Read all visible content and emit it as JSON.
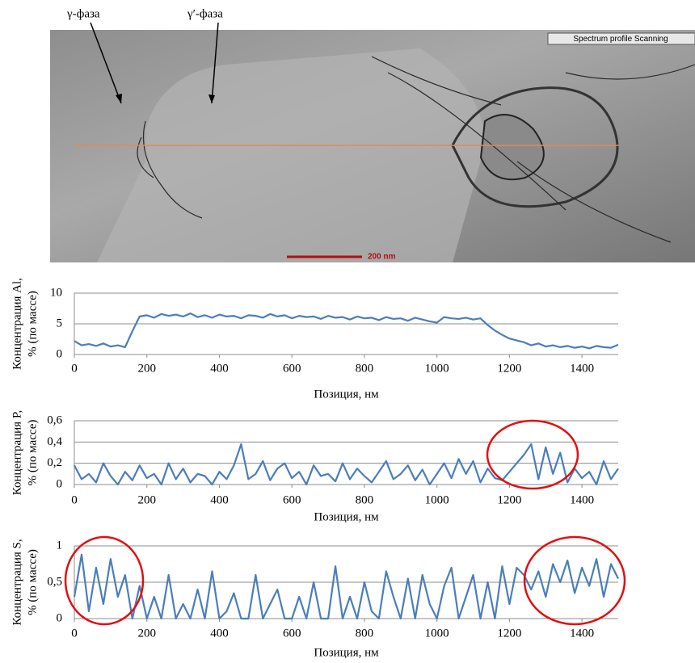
{
  "image": {
    "labels": [
      "γ-фаза",
      "γ′-фаза"
    ],
    "panel_label": "Spectrum profile Scanning",
    "scale_bar": "200 nm"
  },
  "chart_data": [
    {
      "type": "line",
      "ylabel": [
        "Концентрация Al,",
        "% (по массе)"
      ],
      "xlabel": "Позиция, нм",
      "color": "#4a7ebb",
      "grid": true,
      "xlim": [
        0,
        1500
      ],
      "xticks": [
        0,
        200,
        400,
        600,
        800,
        1000,
        1200,
        1400
      ],
      "ylim": [
        0,
        10
      ],
      "yticks": [
        0,
        5,
        10
      ],
      "x": [
        0,
        20,
        40,
        60,
        80,
        100,
        120,
        140,
        160,
        180,
        200,
        220,
        240,
        260,
        280,
        300,
        320,
        340,
        360,
        380,
        400,
        420,
        440,
        460,
        480,
        500,
        520,
        540,
        560,
        580,
        600,
        620,
        640,
        660,
        680,
        700,
        720,
        740,
        760,
        780,
        800,
        820,
        840,
        860,
        880,
        900,
        920,
        940,
        960,
        980,
        1000,
        1020,
        1040,
        1060,
        1080,
        1100,
        1120,
        1140,
        1160,
        1180,
        1200,
        1220,
        1240,
        1260,
        1280,
        1300,
        1320,
        1340,
        1360,
        1380,
        1400,
        1420,
        1440,
        1460,
        1480,
        1500
      ],
      "values": [
        2.2,
        1.5,
        1.7,
        1.4,
        1.8,
        1.3,
        1.5,
        1.2,
        3.8,
        6.2,
        6.4,
        6.0,
        6.6,
        6.3,
        6.5,
        6.2,
        6.7,
        6.1,
        6.4,
        6.0,
        6.5,
        6.2,
        6.3,
        5.9,
        6.4,
        6.3,
        6.0,
        6.6,
        6.2,
        6.4,
        5.9,
        6.3,
        6.1,
        6.2,
        5.8,
        6.3,
        6.0,
        6.1,
        5.7,
        6.2,
        5.9,
        6.0,
        5.6,
        6.1,
        5.8,
        5.9,
        5.5,
        6.0,
        5.7,
        5.4,
        5.2,
        6.1,
        5.9,
        5.8,
        6.0,
        5.7,
        5.9,
        4.8,
        3.9,
        3.2,
        2.6,
        2.3,
        2.0,
        1.5,
        1.8,
        1.3,
        1.5,
        1.2,
        1.4,
        1.1,
        1.3,
        1.0,
        1.4,
        1.2,
        1.1,
        1.6
      ]
    },
    {
      "type": "line",
      "ylabel": [
        "Концентрация P,",
        "% (по массе)"
      ],
      "xlabel": "Позиция, нм",
      "color": "#4a7ebb",
      "grid": true,
      "xlim": [
        0,
        1500
      ],
      "xticks": [
        0,
        200,
        400,
        600,
        800,
        1000,
        1200,
        1400
      ],
      "ylim": [
        0,
        0.6
      ],
      "yticks": [
        0,
        {
          "value": 0.2,
          "label": "0,2"
        },
        {
          "value": 0.4,
          "label": "0,4"
        },
        {
          "value": 0.6,
          "label": "0,6"
        }
      ],
      "x": [
        0,
        20,
        40,
        60,
        80,
        100,
        120,
        140,
        160,
        180,
        200,
        220,
        240,
        260,
        280,
        300,
        320,
        340,
        360,
        380,
        400,
        420,
        440,
        460,
        480,
        500,
        520,
        540,
        560,
        580,
        600,
        620,
        640,
        660,
        680,
        700,
        720,
        740,
        760,
        780,
        800,
        820,
        840,
        860,
        880,
        900,
        920,
        940,
        960,
        980,
        1000,
        1020,
        1040,
        1060,
        1080,
        1100,
        1120,
        1140,
        1160,
        1180,
        1200,
        1220,
        1240,
        1260,
        1280,
        1300,
        1320,
        1340,
        1360,
        1380,
        1400,
        1420,
        1440,
        1460,
        1480,
        1500
      ],
      "values": [
        0.18,
        0.05,
        0.1,
        0.02,
        0.2,
        0.08,
        0,
        0.12,
        0.04,
        0.18,
        0.06,
        0.1,
        0.0,
        0.2,
        0.05,
        0.15,
        0.02,
        0.1,
        0.08,
        0.0,
        0.12,
        0.05,
        0.18,
        0.38,
        0.05,
        0.1,
        0.22,
        0.04,
        0.15,
        0.2,
        0.06,
        0.12,
        0.0,
        0.18,
        0.08,
        0.1,
        0.03,
        0.2,
        0.05,
        0.15,
        0.08,
        0.02,
        0.12,
        0.22,
        0.05,
        0.1,
        0.18,
        0.04,
        0.14,
        0.0,
        0.1,
        0.2,
        0.06,
        0.24,
        0.1,
        0.22,
        0.02,
        0.15,
        0.06,
        0.04,
        0.12,
        0.2,
        0.28,
        0.38,
        0.05,
        0.35,
        0.1,
        0.3,
        0.02,
        0.15,
        0.06,
        0.12,
        0.0,
        0.22,
        0.05,
        0.15
      ]
    },
    {
      "type": "line",
      "ylabel": [
        "Концентрация S,",
        "% (по массе)"
      ],
      "xlabel": "Позиция, нм",
      "color": "#4a7ebb",
      "grid": true,
      "xlim": [
        0,
        1500
      ],
      "xticks": [
        0,
        200,
        400,
        600,
        800,
        1000,
        1200,
        1400
      ],
      "ylim": [
        0,
        1
      ],
      "yticks": [
        0,
        {
          "value": 0.5,
          "label": "0,5"
        },
        1
      ],
      "x": [
        0,
        20,
        40,
        60,
        80,
        100,
        120,
        140,
        160,
        180,
        200,
        220,
        240,
        260,
        280,
        300,
        320,
        340,
        360,
        380,
        400,
        420,
        440,
        460,
        480,
        500,
        520,
        540,
        560,
        580,
        600,
        620,
        640,
        660,
        680,
        700,
        720,
        740,
        760,
        780,
        800,
        820,
        840,
        860,
        880,
        900,
        920,
        940,
        960,
        980,
        1000,
        1020,
        1040,
        1060,
        1080,
        1100,
        1120,
        1140,
        1160,
        1180,
        1200,
        1220,
        1240,
        1260,
        1280,
        1300,
        1320,
        1340,
        1360,
        1380,
        1400,
        1420,
        1440,
        1460,
        1480,
        1500
      ],
      "values": [
        0.3,
        0.88,
        0.1,
        0.7,
        0.2,
        0.82,
        0.3,
        0.6,
        0.0,
        0.45,
        0.0,
        0.3,
        0.0,
        0.6,
        0.0,
        0.2,
        0.0,
        0.4,
        0.0,
        0.65,
        0.0,
        0.1,
        0.35,
        0.0,
        0.0,
        0.6,
        0.0,
        0.2,
        0.4,
        0.0,
        0.0,
        0.3,
        0.0,
        0.5,
        0.0,
        0.0,
        0.72,
        0.0,
        0.3,
        0.0,
        0.5,
        0.1,
        0.0,
        0.65,
        0.3,
        0.0,
        0.55,
        0.0,
        0.6,
        0.2,
        0.0,
        0.45,
        0.7,
        0.0,
        0.3,
        0.6,
        0.0,
        0.5,
        0.0,
        0.72,
        0.2,
        0.7,
        0.6,
        0.4,
        0.65,
        0.3,
        0.75,
        0.5,
        0.8,
        0.35,
        0.7,
        0.45,
        0.82,
        0.3,
        0.75,
        0.55
      ]
    }
  ]
}
